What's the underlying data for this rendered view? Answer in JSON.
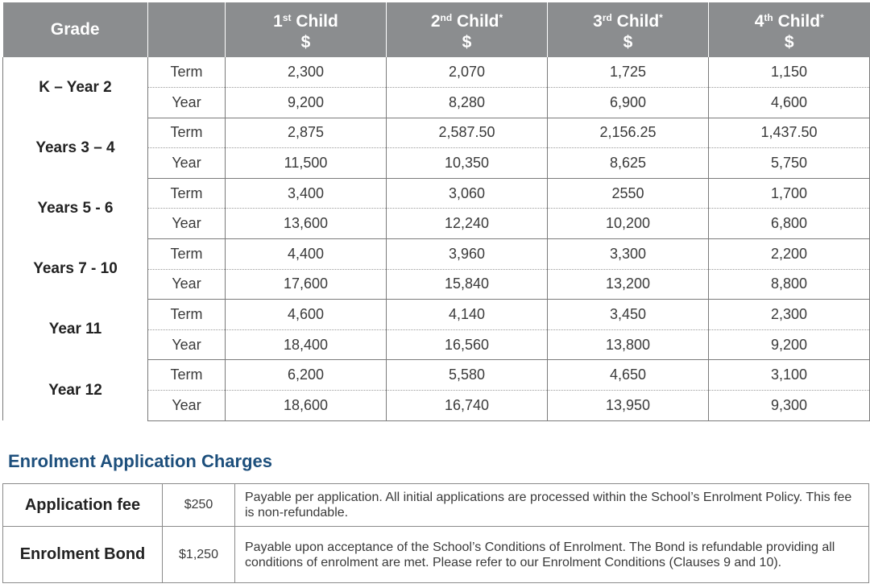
{
  "fee_table": {
    "header": {
      "grade": "Grade",
      "currency": "$",
      "children": [
        {
          "num": "1",
          "sup": "st",
          "label": " Child",
          "star": ""
        },
        {
          "num": "2",
          "sup": "nd",
          "label": " Child",
          "star": "*"
        },
        {
          "num": "3",
          "sup": "rd",
          "label": " Child",
          "star": "*"
        },
        {
          "num": "4",
          "sup": "th",
          "label": " Child",
          "star": "*"
        }
      ]
    },
    "rows": [
      {
        "grade": "K – Year 2",
        "term_label": "Term",
        "year_label": "Year",
        "term": [
          "2,300",
          "2,070",
          "1,725",
          "1,150"
        ],
        "year": [
          "9,200",
          "8,280",
          "6,900",
          "4,600"
        ]
      },
      {
        "grade": "Years 3 – 4",
        "term_label": "Term",
        "year_label": "Year",
        "term": [
          "2,875",
          "2,587.50",
          "2,156.25",
          "1,437.50"
        ],
        "year": [
          "11,500",
          "10,350",
          "8,625",
          "5,750"
        ]
      },
      {
        "grade": "Years 5 - 6",
        "term_label": "Term",
        "year_label": "Year",
        "term": [
          "3,400",
          "3,060",
          "2550",
          "1,700"
        ],
        "year": [
          "13,600",
          "12,240",
          "10,200",
          "6,800"
        ]
      },
      {
        "grade": "Years 7 - 10",
        "term_label": "Term",
        "year_label": "Year",
        "term": [
          "4,400",
          "3,960",
          "3,300",
          "2,200"
        ],
        "year": [
          "17,600",
          "15,840",
          "13,200",
          "8,800"
        ]
      },
      {
        "grade": "Year 11",
        "term_label": "Term",
        "year_label": "Year",
        "term": [
          "4,600",
          "4,140",
          "3,450",
          "2,300"
        ],
        "year": [
          "18,400",
          "16,560",
          "13,800",
          "9,200"
        ]
      },
      {
        "grade": "Year 12",
        "term_label": "Term",
        "year_label": "Year",
        "term": [
          "6,200",
          "5,580",
          "4,650",
          "3,100"
        ],
        "year": [
          "18,600",
          "16,740",
          "13,950",
          "9,300"
        ]
      }
    ]
  },
  "enrolment": {
    "title": "Enrolment Application Charges",
    "rows": [
      {
        "name": "Application fee",
        "amount": "$250",
        "description": "Payable per application. All initial applications are processed within the School’s Enrolment Policy. This fee is non-refundable."
      },
      {
        "name": "Enrolment Bond",
        "amount": "$1,250",
        "description": "Payable upon acceptance of the School’s Conditions of Enrolment. The Bond is refundable providing all conditions of enrolment are met. Please refer to our Enrolment Conditions (Clauses 9 and 10)."
      }
    ]
  },
  "colors": {
    "header_bg": "#8b8d8f",
    "heading": "#1d4f7c",
    "border": "#7a7a7a"
  }
}
